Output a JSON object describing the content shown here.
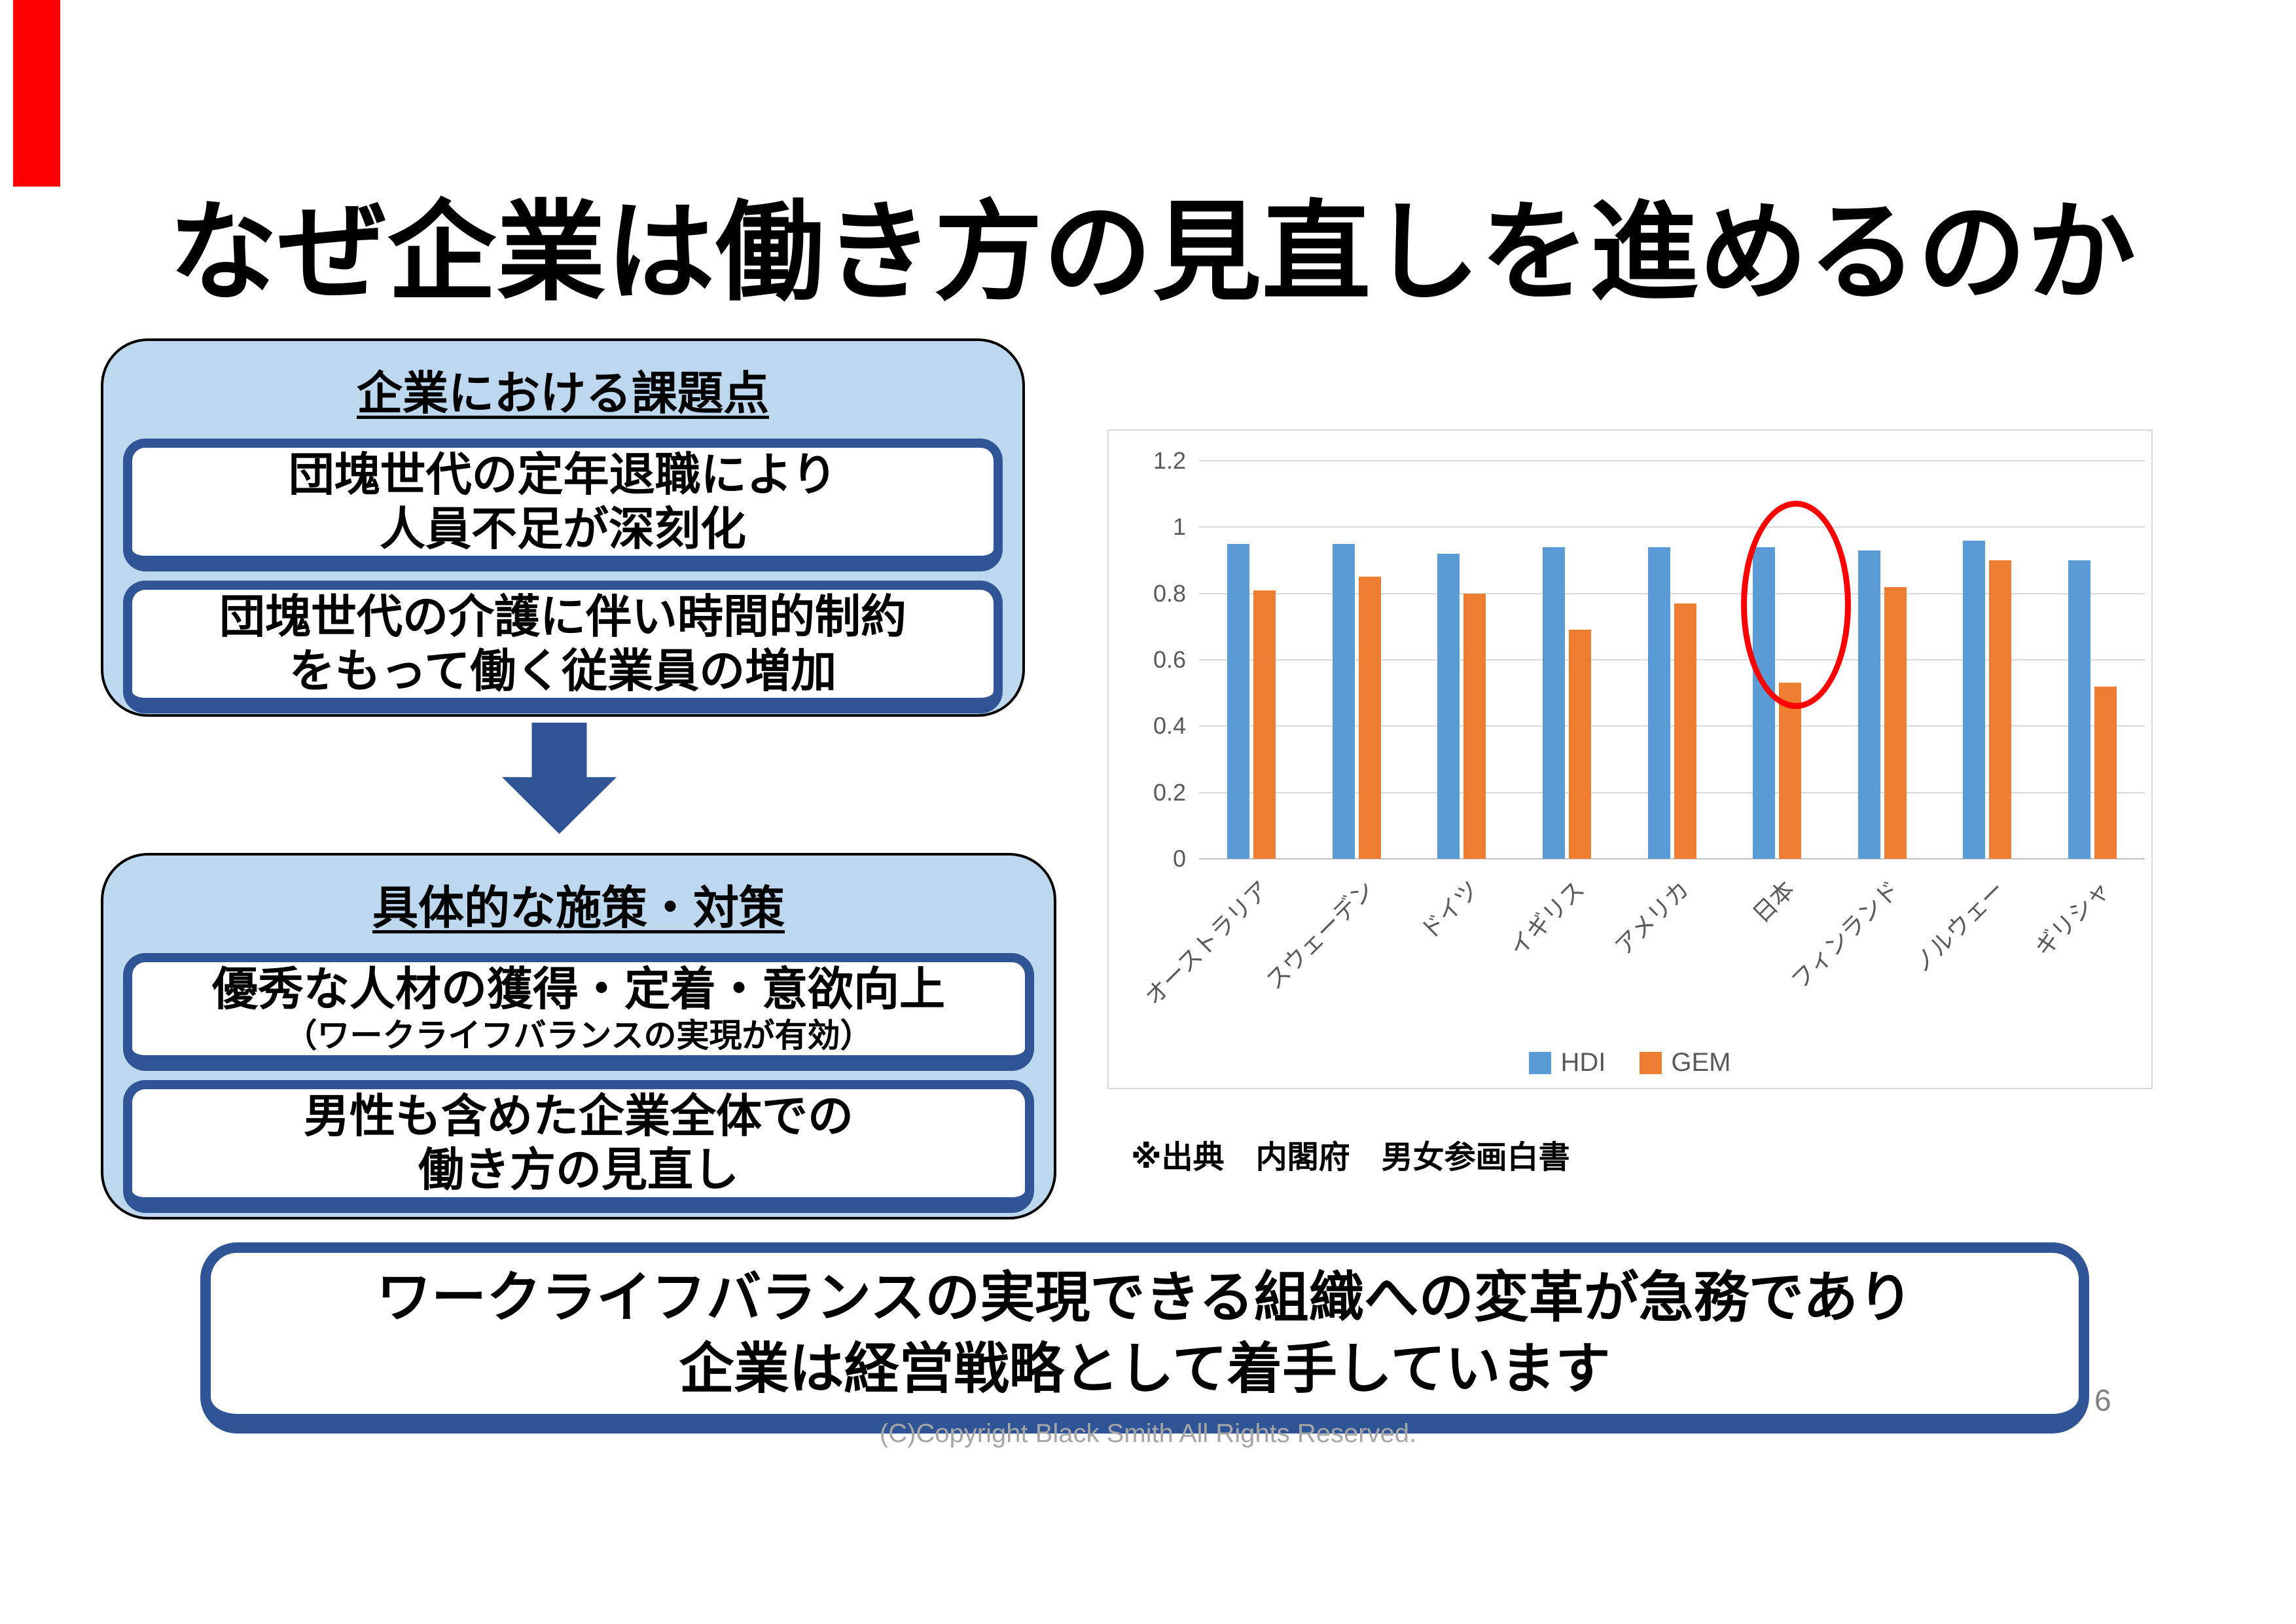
{
  "slide": {
    "title": "なぜ企業は働き方の見直しを進めるのか",
    "page_number": "6",
    "copyright": "(C)Copyright Black Smith All Rights Reserved."
  },
  "issues_box": {
    "header": "企業における課題点",
    "items": [
      {
        "line1": "団塊世代の定年退職により",
        "line2": "人員不足が深刻化"
      },
      {
        "line1": "団塊世代の介護に伴い時間的制約",
        "line2": "をもって働く従業員の増加"
      }
    ]
  },
  "measures_box": {
    "header": "具体的な施策・対策",
    "items": [
      {
        "line1": "優秀な人材の獲得・定着・意欲向上",
        "line2": "（ワークライフバランスの実現が有効）"
      },
      {
        "line1": "男性も含めた企業全体での",
        "line2": "働き方の見直し"
      }
    ]
  },
  "conclusion_box": {
    "line1": "ワークライフバランスの実現できる組織への変革が急務であり",
    "line2": "企業は経営戦略として着手しています"
  },
  "chart": {
    "source_note": "※出典　内閣府　男女参画白書"
  },
  "chart_data": {
    "type": "bar",
    "title": "",
    "categories": [
      "オーストラリア",
      "スウェーデン",
      "ドイツ",
      "イギリス",
      "アメリカ",
      "日本",
      "フィンランド",
      "ノルウェー",
      "ギリシャ"
    ],
    "series": [
      {
        "name": "HDI",
        "color": "#5B9BD5",
        "values": [
          0.95,
          0.95,
          0.92,
          0.94,
          0.94,
          0.94,
          0.93,
          0.96,
          0.9
        ]
      },
      {
        "name": "GEM",
        "color": "#ED7D31",
        "values": [
          0.81,
          0.85,
          0.8,
          0.69,
          0.77,
          0.53,
          0.82,
          0.9,
          0.52
        ]
      }
    ],
    "xlabel": "",
    "ylabel": "",
    "ylim": [
      0,
      1.2
    ],
    "yticks": [
      0,
      0.2,
      0.4,
      0.6,
      0.8,
      1,
      1.2
    ],
    "grid": true,
    "legend_position": "bottom",
    "annotation": {
      "shape": "ellipse",
      "category": "日本",
      "series": "GEM",
      "color": "#FF0000"
    }
  },
  "colors": {
    "accent_dark_blue": "#2F5597",
    "panel_light_blue": "#BDD7EE",
    "bar_blue": "#5B9BD5",
    "bar_orange": "#ED7D31",
    "highlight_red": "#FF0000",
    "grid_gray": "#D9D9D9",
    "axis_text_gray": "#595959",
    "muted_text_gray": "#A6A6A6"
  }
}
